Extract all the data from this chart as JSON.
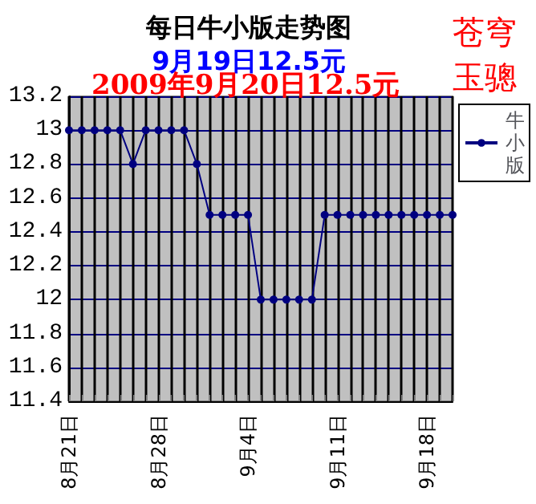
{
  "chart_data": {
    "type": "line",
    "title": "每日牛小版走势图",
    "subtitle": "9月19日12.5元",
    "annotations": [
      "2009年9月20日12.5元",
      "苍穹玉骢"
    ],
    "categories": [
      "8月21日",
      null,
      null,
      null,
      null,
      null,
      null,
      "8月28日",
      null,
      null,
      null,
      null,
      null,
      null,
      "9月4日",
      null,
      null,
      null,
      null,
      null,
      null,
      "9月11日",
      null,
      null,
      null,
      null,
      null,
      null,
      "9月18日",
      null,
      null
    ],
    "series": [
      {
        "name": "牛小版",
        "color": "#000080",
        "values": [
          13,
          13,
          13,
          13,
          13,
          12.8,
          13,
          13,
          13,
          13,
          12.8,
          12.5,
          12.5,
          12.5,
          12.5,
          12,
          12,
          12,
          12,
          12,
          12.5,
          12.5,
          12.5,
          12.5,
          12.5,
          12.5,
          12.5,
          12.5,
          12.5,
          12.5,
          12.5
        ]
      }
    ],
    "ylim": [
      11.4,
      13.2
    ],
    "yticks": [
      11.4,
      11.6,
      11.8,
      12,
      12.2,
      12.4,
      12.6,
      12.8,
      13,
      13.2
    ],
    "grid": true,
    "legend": "right",
    "marker": "circle",
    "line_style": "solid"
  }
}
